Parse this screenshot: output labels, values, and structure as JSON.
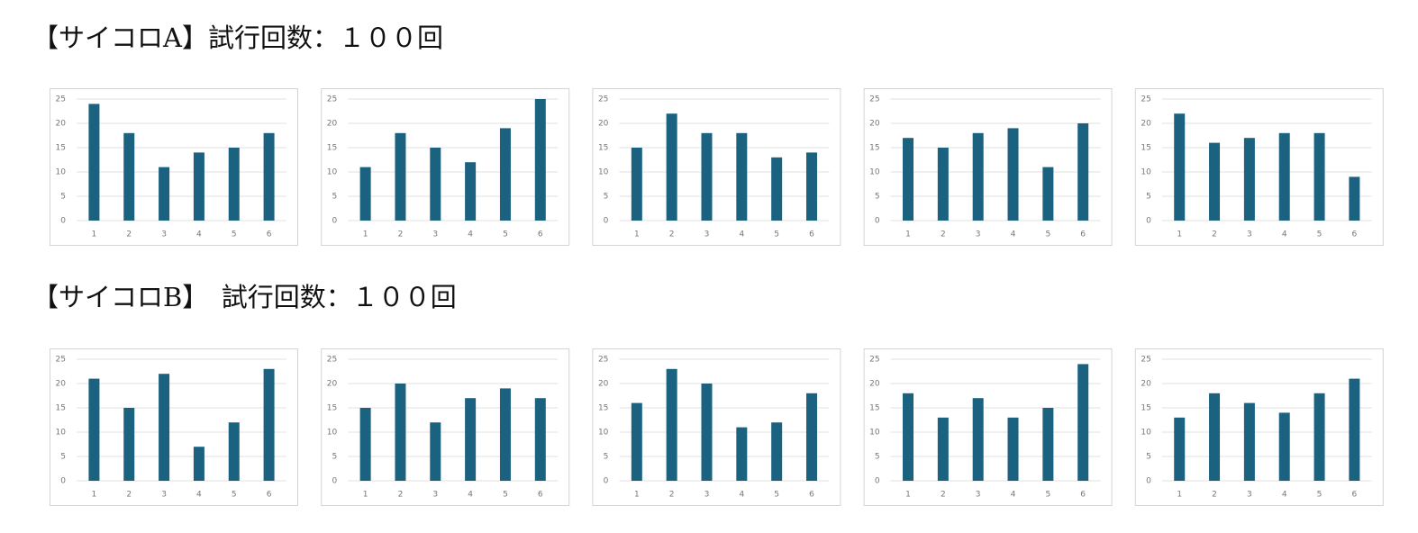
{
  "headings": [
    "【サイコロA】試行回数：１００回",
    "【サイコロB】　試行回数：１００回"
  ],
  "chart_data": [
    {
      "type": "bar",
      "categories": [
        "1",
        "2",
        "3",
        "4",
        "5",
        "6"
      ],
      "values": [
        24,
        18,
        11,
        14,
        15,
        18
      ],
      "color": "#1b6281",
      "ylim": [
        0,
        25
      ],
      "yticks": [
        0,
        5,
        10,
        15,
        20,
        25
      ],
      "grid": true
    },
    {
      "type": "bar",
      "categories": [
        "1",
        "2",
        "3",
        "4",
        "5",
        "6"
      ],
      "values": [
        11,
        18,
        15,
        12,
        19,
        25
      ],
      "color": "#1b6281",
      "ylim": [
        0,
        25
      ],
      "yticks": [
        0,
        5,
        10,
        15,
        20,
        25
      ],
      "grid": true
    },
    {
      "type": "bar",
      "categories": [
        "1",
        "2",
        "3",
        "4",
        "5",
        "6"
      ],
      "values": [
        15,
        22,
        18,
        18,
        13,
        14
      ],
      "color": "#1b6281",
      "ylim": [
        0,
        25
      ],
      "yticks": [
        0,
        5,
        10,
        15,
        20,
        25
      ],
      "grid": true
    },
    {
      "type": "bar",
      "categories": [
        "1",
        "2",
        "3",
        "4",
        "5",
        "6"
      ],
      "values": [
        17,
        15,
        18,
        19,
        11,
        20
      ],
      "color": "#1b6281",
      "ylim": [
        0,
        25
      ],
      "yticks": [
        0,
        5,
        10,
        15,
        20,
        25
      ],
      "grid": true
    },
    {
      "type": "bar",
      "categories": [
        "1",
        "2",
        "3",
        "4",
        "5",
        "6"
      ],
      "values": [
        22,
        16,
        17,
        18,
        18,
        9
      ],
      "color": "#1b6281",
      "ylim": [
        0,
        25
      ],
      "yticks": [
        0,
        5,
        10,
        15,
        20,
        25
      ],
      "grid": true
    },
    {
      "type": "bar",
      "categories": [
        "1",
        "2",
        "3",
        "4",
        "5",
        "6"
      ],
      "values": [
        21,
        15,
        22,
        7,
        12,
        23
      ],
      "color": "#1b6281",
      "ylim": [
        0,
        25
      ],
      "yticks": [
        0,
        5,
        10,
        15,
        20,
        25
      ],
      "grid": true
    },
    {
      "type": "bar",
      "categories": [
        "1",
        "2",
        "3",
        "4",
        "5",
        "6"
      ],
      "values": [
        15,
        20,
        12,
        17,
        19,
        17
      ],
      "color": "#1b6281",
      "ylim": [
        0,
        25
      ],
      "yticks": [
        0,
        5,
        10,
        15,
        20,
        25
      ],
      "grid": true
    },
    {
      "type": "bar",
      "categories": [
        "1",
        "2",
        "3",
        "4",
        "5",
        "6"
      ],
      "values": [
        16,
        23,
        20,
        11,
        12,
        18
      ],
      "color": "#1b6281",
      "ylim": [
        0,
        25
      ],
      "yticks": [
        0,
        5,
        10,
        15,
        20,
        25
      ],
      "grid": true
    },
    {
      "type": "bar",
      "categories": [
        "1",
        "2",
        "3",
        "4",
        "5",
        "6"
      ],
      "values": [
        18,
        13,
        17,
        13,
        15,
        24
      ],
      "color": "#1b6281",
      "ylim": [
        0,
        25
      ],
      "yticks": [
        0,
        5,
        10,
        15,
        20,
        25
      ],
      "grid": true
    },
    {
      "type": "bar",
      "categories": [
        "1",
        "2",
        "3",
        "4",
        "5",
        "6"
      ],
      "values": [
        13,
        18,
        16,
        14,
        18,
        21
      ],
      "color": "#1b6281",
      "ylim": [
        0,
        25
      ],
      "yticks": [
        0,
        5,
        10,
        15,
        20,
        25
      ],
      "grid": true
    }
  ]
}
